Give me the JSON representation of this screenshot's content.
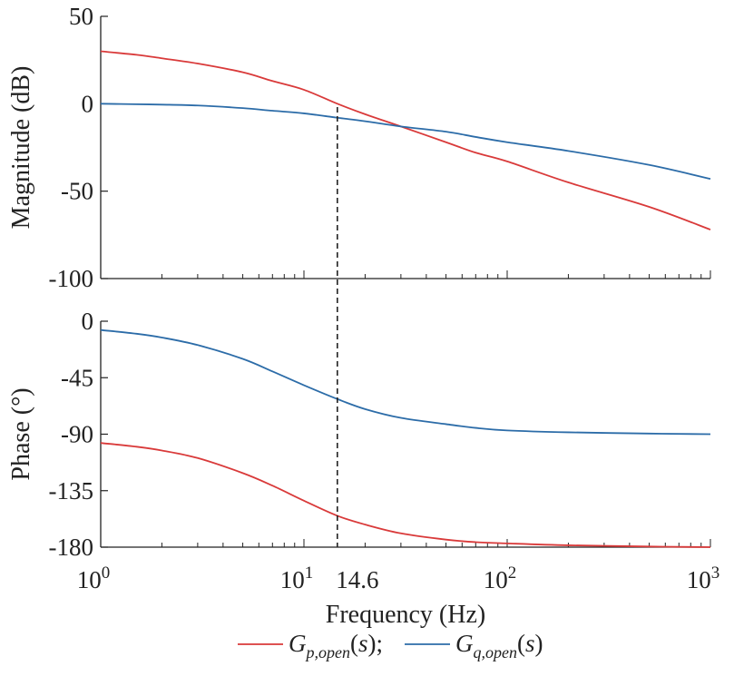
{
  "chart_data": {
    "type": "line",
    "x_scale": "log",
    "x_ticks": [
      "10^0",
      "10^1",
      "10^2",
      "10^3"
    ],
    "xlabel": "Frequency (Hz)",
    "marker": {
      "x": 14.6,
      "label": "14.6",
      "style": "dashed",
      "color": "#222222"
    },
    "panels": [
      {
        "ylabel": "Magnitude (dB)",
        "ylim": [
          -100,
          50
        ],
        "yticks": [
          "50",
          "0",
          "-50",
          "-100"
        ],
        "series": [
          {
            "name": "Gp,open(s)",
            "color": "#d93a3a",
            "x": [
              1,
              1.5,
              2,
              3,
              5,
              7,
              10,
              14.6,
              20,
              30,
              50,
              70,
              100,
              200,
              500,
              1000
            ],
            "y": [
              30,
              28,
              26,
              23,
              18,
              13,
              8,
              0,
              -6,
              -13,
              -22,
              -28,
              -33,
              -45,
              -59,
              -72
            ]
          },
          {
            "name": "Gq,open(s)",
            "color": "#2c6ca8",
            "x": [
              1,
              1.5,
              2,
              3,
              5,
              7,
              10,
              14.6,
              20,
              30,
              50,
              70,
              100,
              200,
              500,
              1000
            ],
            "y": [
              0,
              -0.3,
              -0.5,
              -1,
              -2.5,
              -4,
              -5.5,
              -8,
              -10,
              -13,
              -16,
              -19,
              -22,
              -27,
              -35,
              -43
            ]
          }
        ]
      },
      {
        "ylabel": "Phase (°)",
        "ylim": [
          -180,
          0
        ],
        "yticks": [
          "0",
          "-45",
          "-90",
          "-135",
          "-180"
        ],
        "series": [
          {
            "name": "Gp,open(s)",
            "color": "#d93a3a",
            "x": [
              1,
              1.5,
              2,
              3,
              5,
              7,
              10,
              14.6,
              20,
              30,
              50,
              70,
              100,
              200,
              500,
              1000
            ],
            "y": [
              -97,
              -100,
              -103,
              -109,
              -121,
              -131,
              -143,
              -155,
              -162,
              -169,
              -174,
              -176,
              -177,
              -178.5,
              -179.5,
              -180
            ]
          },
          {
            "name": "Gq,open(s)",
            "color": "#2c6ca8",
            "x": [
              1,
              1.5,
              2,
              3,
              5,
              7,
              10,
              14.6,
              20,
              30,
              50,
              70,
              100,
              200,
              500,
              1000
            ],
            "y": [
              -7,
              -10,
              -13,
              -19,
              -30,
              -40,
              -51,
              -62,
              -70,
              -77,
              -82,
              -85,
              -87,
              -88.5,
              -89.5,
              -90
            ]
          }
        ]
      }
    ],
    "legend": {
      "placement": "bottom",
      "separator": ";",
      "entries": [
        {
          "base": "G",
          "sub": "p,open",
          "arg": "(s)",
          "color": "#d93a3a"
        },
        {
          "base": "G",
          "sub": "q,open",
          "arg": "(s)",
          "color": "#2c6ca8"
        }
      ]
    }
  }
}
